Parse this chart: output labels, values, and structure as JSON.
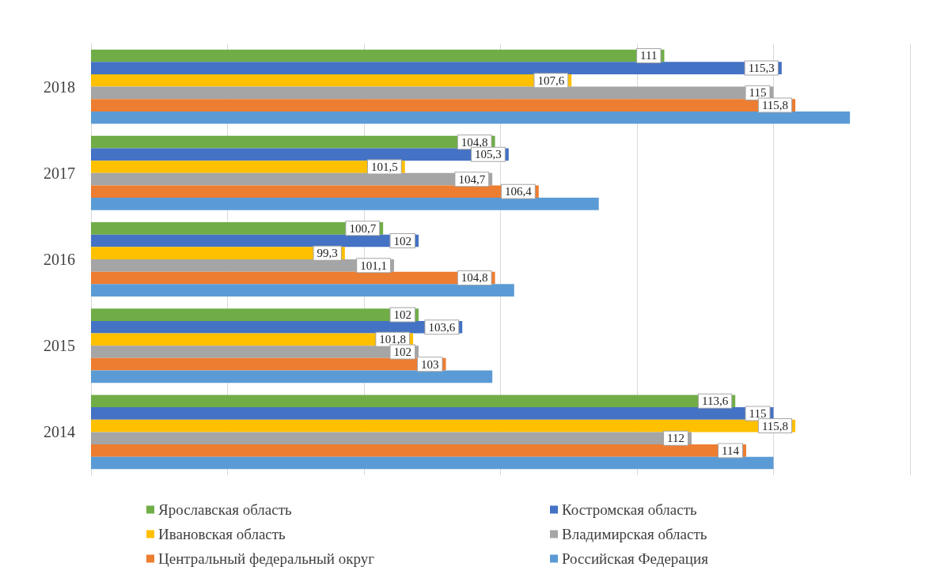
{
  "chart_data": {
    "type": "bar",
    "orientation": "horizontal",
    "categories": [
      "2018",
      "2017",
      "2016",
      "2015",
      "2014"
    ],
    "xlim": [
      90,
      120
    ],
    "xticks": [
      {
        "value": 90,
        "label": null
      },
      {
        "value": 95,
        "label": null
      },
      {
        "value": 100,
        "label": null
      },
      {
        "value": 105,
        "label": null
      },
      {
        "value": 110,
        "label": null
      },
      {
        "value": 115,
        "label": null
      },
      {
        "value": 120,
        "label": null
      }
    ],
    "tick_labels": "y",
    "grid": "x",
    "legend": "bottom",
    "series": [
      {
        "name": "Ярославская область",
        "color": "#70ad47",
        "values": [
          111,
          104.8,
          100.7,
          102,
          113.6
        ],
        "value_labels": [
          "111",
          "104,8",
          "100,7",
          "102",
          "113,6"
        ]
      },
      {
        "name": "Костромская область",
        "color": "#4472c4",
        "values": [
          115.3,
          105.3,
          102,
          103.6,
          115
        ],
        "value_labels": [
          "115,3",
          "105,3",
          "102",
          "103,6",
          "115"
        ]
      },
      {
        "name": "Ивановская область",
        "color": "#ffc000",
        "values": [
          107.6,
          101.5,
          99.3,
          101.8,
          115.8
        ],
        "value_labels": [
          "107,6",
          "101,5",
          "99,3",
          "101,8",
          "115,8"
        ]
      },
      {
        "name": "Владимирская область",
        "color": "#a5a5a5",
        "values": [
          115,
          104.7,
          101.1,
          102,
          112
        ],
        "value_labels": [
          "115",
          "104,7",
          "101,1",
          "102",
          "112"
        ]
      },
      {
        "name": "Центральный федеральный округ",
        "color": "#ed7d31",
        "values": [
          115.8,
          106.4,
          104.8,
          103,
          114
        ],
        "value_labels": [
          "115,8",
          "106,4",
          "104,8",
          "103",
          "114"
        ]
      },
      {
        "name": "Российская Федерация",
        "color": "#5b9bd5",
        "values": [
          117.8,
          108.6,
          105.5,
          104.7,
          115
        ]
      }
    ]
  }
}
